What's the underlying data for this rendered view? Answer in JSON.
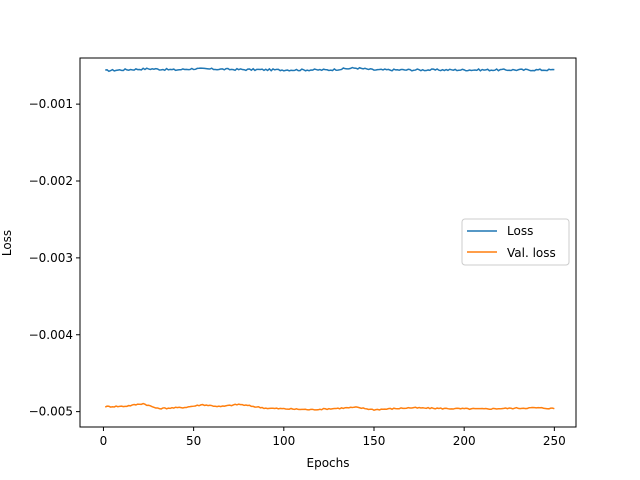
{
  "chart_data": {
    "type": "line",
    "title": "",
    "xlabel": "Epochs",
    "ylabel": "Loss",
    "xlim": [
      -13,
      262
    ],
    "ylim": [
      -0.0052,
      -0.0004
    ],
    "xticks": [
      0,
      50,
      100,
      150,
      200,
      250
    ],
    "yticks": [
      -0.001,
      -0.002,
      -0.003,
      -0.004,
      -0.005
    ],
    "ytick_labels": [
      "−0.001",
      "−0.002",
      "−0.003",
      "−0.004",
      "−0.005"
    ],
    "xtick_labels": [
      "0",
      "50",
      "100",
      "150",
      "200",
      "250"
    ],
    "grid": false,
    "legend_position": "center-right",
    "series": [
      {
        "name": "Loss",
        "color": "#1f77b4",
        "x_start": 1,
        "x_step": 1,
        "base": -0.000555,
        "values_sample": [
          [
            1,
            -0.000565
          ],
          [
            10,
            -0.000555
          ],
          [
            20,
            -0.000545
          ],
          [
            25,
            -0.00054
          ],
          [
            40,
            -0.000555
          ],
          [
            50,
            -0.00054
          ],
          [
            75,
            -0.00055
          ],
          [
            100,
            -0.000555
          ],
          [
            125,
            -0.000555
          ],
          [
            140,
            -0.00053
          ],
          [
            150,
            -0.000555
          ],
          [
            175,
            -0.000555
          ],
          [
            200,
            -0.000555
          ],
          [
            225,
            -0.000555
          ],
          [
            250,
            -0.000555
          ]
        ]
      },
      {
        "name": "Val. loss",
        "color": "#ff7f0e",
        "x_start": 1,
        "x_step": 1,
        "base": -0.004955,
        "values_sample": [
          [
            1,
            -0.004935
          ],
          [
            12,
            -0.00493
          ],
          [
            22,
            -0.004895
          ],
          [
            30,
            -0.00496
          ],
          [
            45,
            -0.004945
          ],
          [
            55,
            -0.00491
          ],
          [
            65,
            -0.004935
          ],
          [
            75,
            -0.004905
          ],
          [
            90,
            -0.004955
          ],
          [
            115,
            -0.004975
          ],
          [
            140,
            -0.004945
          ],
          [
            150,
            -0.004975
          ],
          [
            170,
            -0.00495
          ],
          [
            190,
            -0.00496
          ],
          [
            210,
            -0.004965
          ],
          [
            240,
            -0.00495
          ],
          [
            250,
            -0.00496
          ]
        ]
      }
    ]
  }
}
